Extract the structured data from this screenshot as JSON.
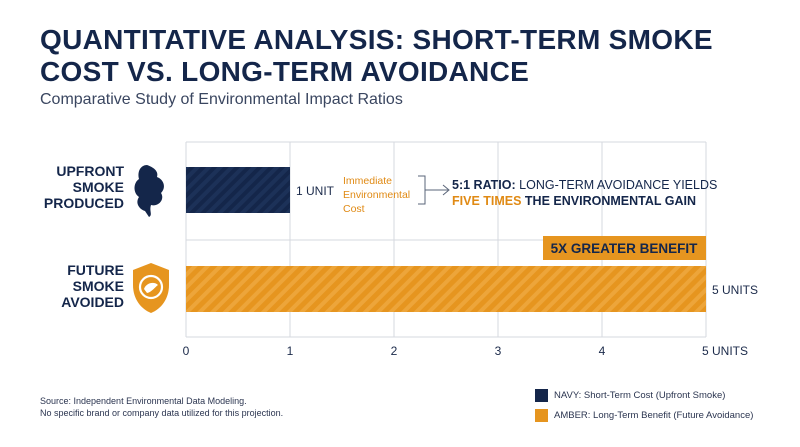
{
  "title": "QUANTITATIVE ANALYSIS: SHORT-TERM SMOKE COST VS. LONG-TERM AVOIDANCE",
  "subtitle": "Comparative Study of Environmental Impact Ratios",
  "colors": {
    "navy": "#14264a",
    "amber": "#e6951f",
    "grid": "#d6d9df"
  },
  "chart_data": {
    "type": "bar",
    "orientation": "horizontal",
    "categories": [
      "UPFRONT SMOKE PRODUCED",
      "FUTURE SMOKE AVOIDED"
    ],
    "category_lines": [
      [
        "UPFRONT",
        "SMOKE",
        "PRODUCED"
      ],
      [
        "FUTURE",
        "SMOKE",
        "AVOIDED"
      ]
    ],
    "values": [
      1,
      5
    ],
    "value_labels": [
      "1 UNIT",
      "5 UNITS"
    ],
    "bar_colors": [
      "#14264a",
      "#e6951f"
    ],
    "icons": [
      "smoke-cloud-icon",
      "shield-icon"
    ],
    "xlim": [
      0,
      5
    ],
    "ticks": [
      0,
      1,
      2,
      3,
      4,
      5
    ],
    "tick_labels": [
      "0",
      "1",
      "2",
      "3",
      "4",
      "5 UNITS"
    ],
    "grid": true,
    "annotations": {
      "immediate_lines": [
        "Immediate",
        "Environmental",
        "Cost"
      ],
      "ratio_label_bold": "5:1 RATIO:",
      "ratio_label_rest": " LONG-TERM AVOIDANCE YIELDS",
      "ratio_line2_highlight": "FIVE TIMES",
      "ratio_line2_rest": " THE ENVIRONMENTAL GAIN",
      "banner": "5X GREATER BENEFIT"
    }
  },
  "source_lines": [
    "Source: Independent Environmental Data Modeling.",
    "No specific brand or company data utilized for this projection."
  ],
  "legend": [
    {
      "label": "NAVY: Short-Term Cost (Upfront Smoke)",
      "color": "#14264a"
    },
    {
      "label": "AMBER: Long-Term Benefit (Future Avoidance)",
      "color": "#e6951f"
    }
  ]
}
